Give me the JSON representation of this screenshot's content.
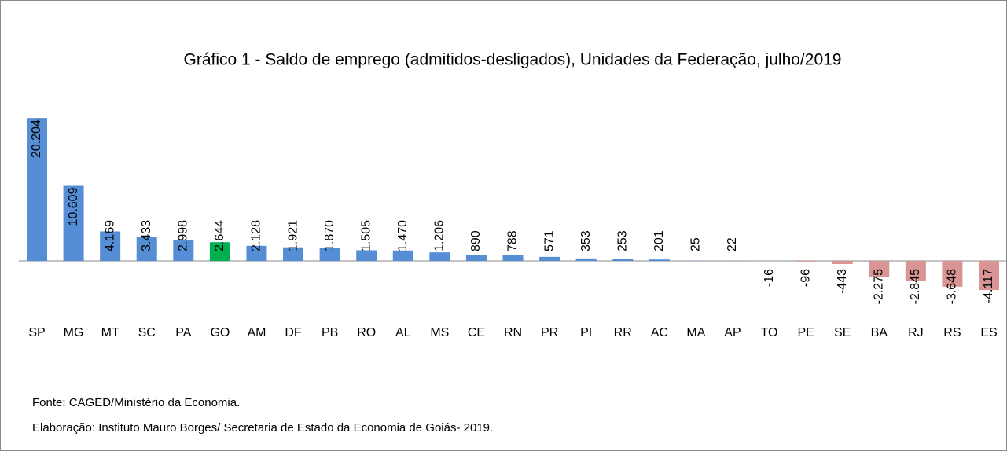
{
  "chart_data": {
    "type": "bar",
    "title": "Gráfico 1 - Saldo de emprego (admitidos-desligados), Unidades da Federação, julho/2019",
    "categories": [
      "SP",
      "MG",
      "MT",
      "SC",
      "PA",
      "GO",
      "AM",
      "DF",
      "PB",
      "RO",
      "AL",
      "MS",
      "CE",
      "RN",
      "PR",
      "PI",
      "RR",
      "AC",
      "MA",
      "AP",
      "TO",
      "PE",
      "SE",
      "BA",
      "RJ",
      "RS",
      "ES"
    ],
    "values": [
      20204,
      10609,
      4169,
      3433,
      2998,
      2644,
      2128,
      1921,
      1870,
      1505,
      1470,
      1206,
      890,
      788,
      571,
      353,
      253,
      201,
      25,
      22,
      -16,
      -96,
      -443,
      -2275,
      -2845,
      -3648,
      -4117
    ],
    "value_labels": [
      "20.204",
      "10.609",
      "4.169",
      "3.433",
      "2.998",
      "2.644",
      "2.128",
      "1.921",
      "1.870",
      "1.505",
      "1.470",
      "1.206",
      "890",
      "788",
      "571",
      "353",
      "253",
      "201",
      "25",
      "22",
      "-16",
      "-96",
      "-443",
      "-2.275",
      "-2.845",
      "-3.648",
      "-4.117"
    ],
    "colors": [
      "#558ed5",
      "#558ed5",
      "#558ed5",
      "#558ed5",
      "#558ed5",
      "#00b050",
      "#558ed5",
      "#558ed5",
      "#558ed5",
      "#558ed5",
      "#558ed5",
      "#558ed5",
      "#558ed5",
      "#558ed5",
      "#558ed5",
      "#558ed5",
      "#558ed5",
      "#558ed5",
      "#558ed5",
      "#558ed5",
      "#d99594",
      "#d99594",
      "#d99594",
      "#d99594",
      "#d99594",
      "#d99594",
      "#d99594"
    ],
    "ylim": [
      -5000,
      22000
    ],
    "notes": [
      "Fonte: CAGED/Ministério da Economia.",
      "Elaboração: Instituto Mauro Borges/ Secretaria de Estado da Economia de Goiás- 2019."
    ]
  }
}
